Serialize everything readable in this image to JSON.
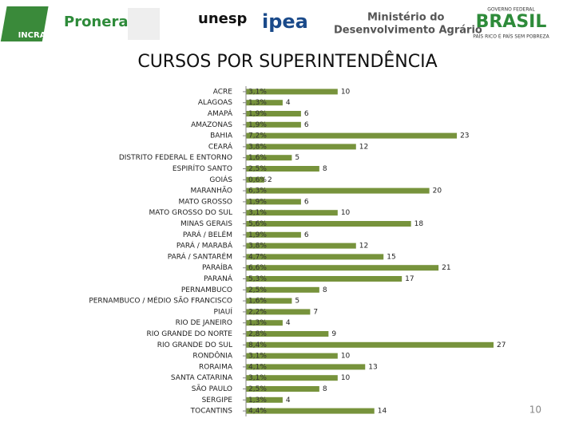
{
  "header": {
    "logos": [
      "INCRA",
      "Pronera",
      "unesp",
      "ipea",
      "Ministério do",
      "Desenvolvimento Agrário",
      "GOVERNO FEDERAL",
      "BRASIL",
      "PAÍS RICO É PAÍS SEM POBREZA"
    ]
  },
  "page_number": "10",
  "chart_data": {
    "type": "bar",
    "orientation": "horizontal",
    "title": "CURSOS POR SUPERINTENDÊNCIA",
    "categories": [
      "ACRE",
      "ALAGOAS",
      "AMAPÁ",
      "AMAZONAS",
      "BAHIA",
      "CEARÁ",
      "DISTRITO FEDERAL E ENTORNO",
      "ESPIRÍTO SANTO",
      "GOIÁS",
      "MARANHÃO",
      "MATO GROSSO",
      "MATO GROSSO DO SUL",
      "MINAS GERAIS",
      "PARÁ / BELÉM",
      "PARÁ / MARABÁ",
      "PARÁ / SANTARÉM",
      "PARAÍBA",
      "PARANÁ",
      "PERNAMBUCO",
      "PERNAMBUCO / MÉDIO SÃO FRANCISCO",
      "PIAUÍ",
      "RIO DE JANEIRO",
      "RIO GRANDE DO NORTE",
      "RIO GRANDE DO SUL",
      "RONDÔNIA",
      "RORAIMA",
      "SANTA CATARINA",
      "SÃO PAULO",
      "SERGIPE",
      "TOCANTINS"
    ],
    "values": [
      10,
      4,
      6,
      6,
      23,
      12,
      5,
      8,
      2,
      20,
      6,
      10,
      18,
      6,
      12,
      15,
      21,
      17,
      8,
      5,
      7,
      4,
      9,
      27,
      10,
      13,
      10,
      8,
      4,
      14
    ],
    "percent_labels": [
      "3,1%",
      "1,3%",
      "1,9%",
      "1,9%",
      "7,2%",
      "3,8%",
      "1,6%",
      "2,5%",
      "0,6%",
      "6,3%",
      "1,9%",
      "3,1%",
      "5,6%",
      "1,9%",
      "3,8%",
      "4,7%",
      "6,6%",
      "5,3%",
      "2,5%",
      "1,6%",
      "2,2%",
      "1,3%",
      "2,8%",
      "8,4%",
      "3,1%",
      "4,1%",
      "3,1%",
      "2,5%",
      "1,3%",
      "4,4%"
    ],
    "color": "#77933c",
    "xlim": [
      0,
      27
    ]
  }
}
